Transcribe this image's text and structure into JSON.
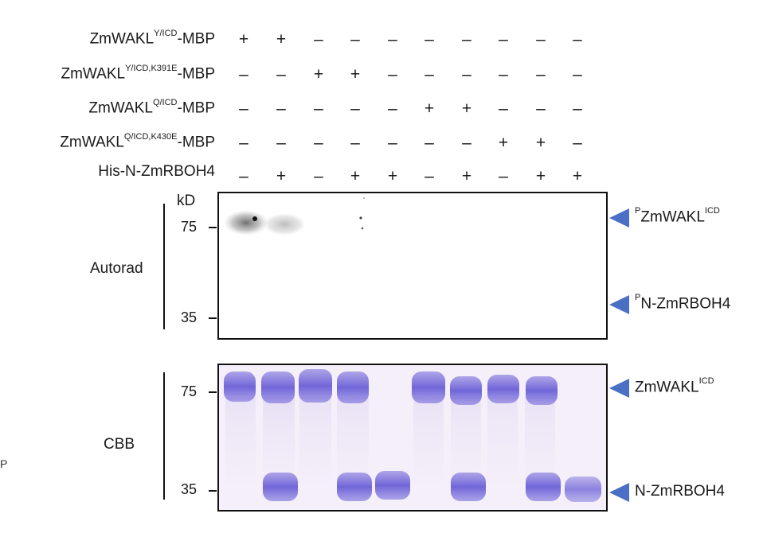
{
  "conditions": [
    {
      "name": "ZmWAKL",
      "sup": "Y/ICD",
      "suffix": "-MBP",
      "signs": [
        "+",
        "+",
        "–",
        "–",
        "–",
        "–",
        "–",
        "–",
        "–",
        "–"
      ]
    },
    {
      "name": "ZmWAKL",
      "sup": "Y/ICD,K391E",
      "suffix": "-MBP",
      "signs": [
        "–",
        "–",
        "+",
        "+",
        "–",
        "–",
        "–",
        "–",
        "–",
        "–"
      ]
    },
    {
      "name": "ZmWAKL",
      "sup": "Q/ICD",
      "suffix": "-MBP",
      "signs": [
        "–",
        "–",
        "–",
        "–",
        "–",
        "+",
        "+",
        "–",
        "–",
        "–"
      ]
    },
    {
      "name": "ZmWAKL",
      "sup": "Q/ICD,K430E",
      "suffix": "-MBP",
      "signs": [
        "–",
        "–",
        "–",
        "–",
        "–",
        "–",
        "–",
        "+",
        "+",
        "–"
      ]
    },
    {
      "name": "His-N-ZmRBOH4",
      "sup": "",
      "suffix": "",
      "signs": [
        "–",
        "+",
        "–",
        "+",
        "+",
        "–",
        "+",
        "–",
        "+",
        "+"
      ]
    }
  ],
  "autorad": {
    "label": "Autorad",
    "unit": "kD",
    "markers": [
      "75",
      "35"
    ],
    "bands": [
      {
        "prefix": "P",
        "name": "ZmWAKL",
        "sup": "ICD"
      },
      {
        "prefix": "P",
        "name": "N-ZmRBOH4",
        "sup": ""
      }
    ]
  },
  "cbb": {
    "label": "CBB",
    "markers": [
      "75",
      "35"
    ],
    "bands": [
      {
        "prefix": "",
        "name": "ZmWAKL",
        "sup": "ICD"
      },
      {
        "prefix": "",
        "name": "N-ZmRBOH4",
        "sup": ""
      }
    ]
  },
  "stray_mark": "P",
  "colors": {
    "arrow": "#4a6fc4",
    "cbb_band": "#6f63d8",
    "autorad_signal": "#222222"
  }
}
